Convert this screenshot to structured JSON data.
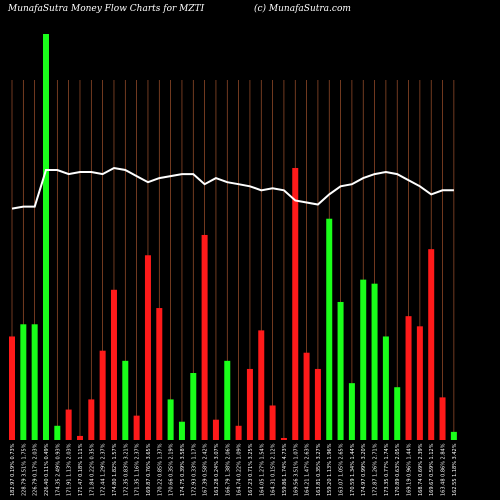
{
  "header": {
    "title": "MunafaSutra  Money Flow  Charts for MZTI",
    "credit": "(c) MunafaSutra.com"
  },
  "chart_data": {
    "type": "bar",
    "title": "MunafaSutra  Money Flow  Charts for MZTI",
    "colors": {
      "up": "#1aff1a",
      "down": "#ff1a1a",
      "grid": "#a0522d",
      "line": "#ffffff",
      "background": "#000000"
    },
    "ylim": [
      0,
      100
    ],
    "categories": [
      "182.97 0.19% 0.73%",
      "228.79 3.51% 1.75%",
      "226.79 0.17% 2.03%",
      "226.40 0.11% 0.49%",
      "174.35 2.49% 0.93%",
      "171.91 1.13% 2.03%",
      "171.47 0.18% 1.11%",
      "171.84 0.22% 0.35%",
      "172.44 1.29% 2.37%",
      "174.80 1.82% 1.57%",
      "172.35 0.83% 3.21%",
      "171.35 1.16% 2.37%",
      "169.87 0.76% 3.65%",
      "170.22 0.85% 1.37%",
      "170.66 0.35% 2.19%",
      "174.75 0.39% 3.58%",
      "172.93 0.33% 1.17%",
      "167.39 0.58% 2.42%",
      "163.28 0.24% 3.07%",
      "166.79 1.38% 2.06%",
      "164.74 0.22% 1.09%",
      "167.23 0.71% 3.25%",
      "164.05 1.27% 1.54%",
      "164.31 0.15% 2.12%",
      "159.86 1.74% 4.73%",
      "169.56 3.51% 1.07%",
      "164.21 1.47% 2.63%",
      "163.81 0.35% 3.27%",
      "159.20 1.13% 1.96%",
      "163.07 1.05% 2.65%",
      "170.59 1.34% 1.44%",
      "174.97 0.99% 3.20%",
      "172.87 1.26% 2.71%",
      "173.35 0.77% 1.74%",
      "170.89 0.63% 2.05%",
      "169.19 0.96% 1.44%",
      "168.74 0.69% 2.39%",
      "169.67 0.59% 1.12%",
      "163.48 0.86% 2.84%",
      "162.55 1.18% 3.42%"
    ],
    "bar_colors": [
      "down",
      "up",
      "up",
      "up",
      "up",
      "down",
      "down",
      "down",
      "down",
      "down",
      "up",
      "down",
      "down",
      "down",
      "up",
      "up",
      "up",
      "down",
      "down",
      "up",
      "down",
      "down",
      "down",
      "down",
      "down",
      "down",
      "down",
      "down",
      "up",
      "up",
      "up",
      "up",
      "up",
      "up",
      "up",
      "down",
      "down",
      "down",
      "down",
      "up"
    ],
    "values": [
      25.5,
      28.5,
      28.5,
      100,
      3.5,
      7.5,
      1,
      10,
      22,
      37,
      19.5,
      6,
      45.5,
      32.5,
      10,
      4.5,
      16.5,
      50.5,
      5,
      19.5,
      3.5,
      17.5,
      27,
      8.5,
      0.5,
      67,
      21.5,
      17.5,
      54.5,
      34,
      14,
      39.5,
      38.5,
      25.5,
      13,
      30.5,
      28,
      47,
      10.5,
      2
    ],
    "line_values": [
      57,
      57.5,
      57.5,
      66.5,
      66.5,
      65.5,
      66,
      66,
      65.5,
      67,
      66.5,
      65,
      63.5,
      64.5,
      65,
      65.5,
      65.5,
      63,
      64.5,
      63.5,
      63,
      62.5,
      61.5,
      62,
      61.5,
      59,
      58.5,
      58,
      60.5,
      62.5,
      63,
      64.5,
      65.5,
      66,
      65.5,
      64,
      62.5,
      60.5,
      61.5,
      61.5
    ]
  }
}
